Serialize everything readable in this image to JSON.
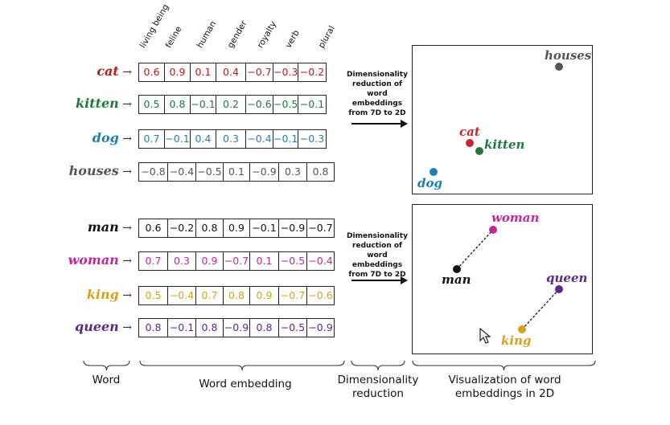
{
  "dimensions": [
    "living being",
    "feline",
    "human",
    "gender",
    "royalty",
    "verb",
    "plural"
  ],
  "groups": [
    {
      "reduction_text": [
        "Dimensionality",
        "reduction of",
        "word",
        "embeddings",
        "from 7D to 2D"
      ],
      "words": [
        {
          "label": "cat",
          "color": "#b71c1c",
          "values": [
            "0.6",
            "0.9",
            "0.1",
            "0.4",
            "−0.7",
            "−0.3",
            "−0.2"
          ]
        },
        {
          "label": "kitten",
          "color": "#1e7a3c",
          "values": [
            "0.5",
            "0.8",
            "−0.1",
            "0.2",
            "−0.6",
            "−0.5",
            "−0.1"
          ]
        },
        {
          "label": "dog",
          "color": "#1f7fb0",
          "values": [
            "0.7",
            "−0.1",
            "0.4",
            "0.3",
            "−0.4",
            "−0.1",
            "−0.3"
          ]
        },
        {
          "label": "houses",
          "color": "#555555",
          "values": [
            "−0.8",
            "−0.4",
            "−0.5",
            "0.1",
            "−0.9",
            "0.3",
            "0.8"
          ]
        }
      ],
      "points": [
        {
          "label": "houses",
          "color": "#555555"
        },
        {
          "label": "cat",
          "color": "#c62828"
        },
        {
          "label": "kitten",
          "color": "#1e7a3c"
        },
        {
          "label": "dog",
          "color": "#1f7fb0"
        }
      ]
    },
    {
      "reduction_text": [
        "Dimensionality",
        "reduction of",
        "word",
        "embeddings",
        "from 7D to 2D"
      ],
      "words": [
        {
          "label": "man",
          "color": "#111111",
          "values": [
            "0.6",
            "−0.2",
            "0.8",
            "0.9",
            "−0.1",
            "−0.9",
            "−0.7"
          ]
        },
        {
          "label": "woman",
          "color": "#c2279a",
          "values": [
            "0.7",
            "0.3",
            "0.9",
            "−0.7",
            "0.1",
            "−0.5",
            "−0.4"
          ]
        },
        {
          "label": "king",
          "color": "#d6a21a",
          "values": [
            "0.5",
            "−0.4",
            "0.7",
            "0.8",
            "0.9",
            "−0.7",
            "−0.6"
          ]
        },
        {
          "label": "queen",
          "color": "#5b2a86",
          "values": [
            "0.8",
            "−0.1",
            "0.8",
            "−0.9",
            "0.8",
            "−0.5",
            "−0.9"
          ]
        }
      ],
      "points": [
        {
          "label": "woman",
          "color": "#c2279a"
        },
        {
          "label": "man",
          "color": "#111111"
        },
        {
          "label": "queen",
          "color": "#5b2a86"
        },
        {
          "label": "king",
          "color": "#d6a21a"
        }
      ]
    }
  ],
  "captions": {
    "word": "Word",
    "embedding": "Word embedding",
    "reduction": [
      "Dimensionality",
      "reduction"
    ],
    "visualization": [
      "Visualization of word",
      "embeddings  in 2D"
    ]
  }
}
